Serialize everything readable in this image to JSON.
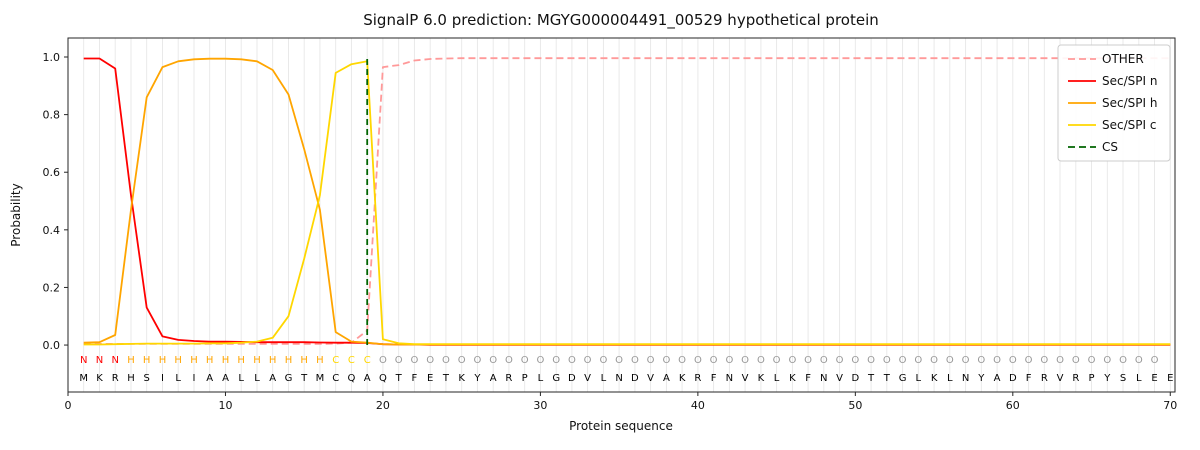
{
  "chart_data": {
    "type": "line",
    "title": "SignalP 6.0 prediction: MGYG000004491_00529 hypothetical protein",
    "xlabel": "Protein sequence",
    "ylabel": "Probability",
    "xlim": [
      0,
      70.3
    ],
    "ylim": [
      -0.163,
      1.066
    ],
    "xticks": [
      0,
      10,
      20,
      30,
      40,
      50,
      60,
      70
    ],
    "yticks": [
      {
        "v": 0.0,
        "label": "0.0"
      },
      {
        "v": 0.2,
        "label": "0.2"
      },
      {
        "v": 0.4,
        "label": "0.4"
      },
      {
        "v": 0.6,
        "label": "0.6"
      },
      {
        "v": 0.8,
        "label": "0.8"
      },
      {
        "v": 1.0,
        "label": "1.0"
      }
    ],
    "grid": "vertical-per-residue",
    "grid_color": "#e7e7e7",
    "legend_position": "upper right",
    "series": [
      {
        "name": "OTHER",
        "color": "#ff9999",
        "style": "dashed",
        "values": [
          0.004,
          0.004,
          0.004,
          0.004,
          0.004,
          0.004,
          0.004,
          0.004,
          0.004,
          0.004,
          0.004,
          0.004,
          0.004,
          0.004,
          0.004,
          0.004,
          0.005,
          0.008,
          0.05,
          0.965,
          0.972,
          0.988,
          0.993,
          0.995,
          0.996,
          0.996,
          0.996,
          0.996,
          0.996,
          0.996,
          0.996,
          0.996,
          0.996,
          0.996,
          0.996,
          0.996,
          0.996,
          0.996,
          0.996,
          0.996,
          0.996,
          0.996,
          0.996,
          0.996,
          0.996,
          0.996,
          0.996,
          0.996,
          0.996,
          0.996,
          0.996,
          0.996,
          0.996,
          0.996,
          0.996,
          0.996,
          0.996,
          0.996,
          0.996,
          0.996,
          0.996,
          0.996,
          0.996,
          0.996,
          0.996,
          0.996,
          0.996,
          0.996,
          0.996,
          0.996
        ]
      },
      {
        "name": "Sec/SPI n",
        "color": "#ff0000",
        "style": "solid",
        "values": [
          0.995,
          0.995,
          0.96,
          0.52,
          0.13,
          0.03,
          0.018,
          0.014,
          0.012,
          0.012,
          0.011,
          0.01,
          0.01,
          0.01,
          0.01,
          0.009,
          0.008,
          0.008,
          0.007,
          0.003,
          0.002,
          0.002,
          0.001,
          0.001,
          0.001,
          0.001,
          0.001,
          0.001,
          0.001,
          0.001,
          0.001,
          0.001,
          0.001,
          0.001,
          0.001,
          0.001,
          0.001,
          0.001,
          0.001,
          0.001,
          0.001,
          0.001,
          0.001,
          0.001,
          0.001,
          0.001,
          0.001,
          0.001,
          0.001,
          0.001,
          0.001,
          0.001,
          0.001,
          0.001,
          0.001,
          0.001,
          0.001,
          0.001,
          0.001,
          0.001,
          0.001,
          0.001,
          0.001,
          0.001,
          0.001,
          0.001,
          0.001,
          0.001,
          0.001,
          0.001
        ]
      },
      {
        "name": "Sec/SPI h",
        "color": "#ffa500",
        "style": "solid",
        "values": [
          0.008,
          0.01,
          0.035,
          0.47,
          0.86,
          0.965,
          0.985,
          0.992,
          0.994,
          0.994,
          0.992,
          0.985,
          0.955,
          0.87,
          0.68,
          0.47,
          0.045,
          0.012,
          0.008,
          0.003,
          0.002,
          0.002,
          0.002,
          0.002,
          0.002,
          0.002,
          0.002,
          0.002,
          0.002,
          0.002,
          0.002,
          0.002,
          0.002,
          0.002,
          0.002,
          0.002,
          0.002,
          0.002,
          0.002,
          0.002,
          0.002,
          0.002,
          0.002,
          0.002,
          0.002,
          0.002,
          0.002,
          0.002,
          0.002,
          0.002,
          0.002,
          0.002,
          0.002,
          0.002,
          0.002,
          0.002,
          0.002,
          0.002,
          0.002,
          0.002,
          0.002,
          0.002,
          0.002,
          0.002,
          0.002,
          0.002,
          0.002,
          0.002,
          0.002,
          0.002
        ]
      },
      {
        "name": "Sec/SPI c",
        "color": "#ffd700",
        "style": "solid",
        "values": [
          0.002,
          0.002,
          0.003,
          0.004,
          0.005,
          0.005,
          0.005,
          0.005,
          0.006,
          0.006,
          0.008,
          0.012,
          0.025,
          0.1,
          0.3,
          0.52,
          0.945,
          0.975,
          0.985,
          0.02,
          0.006,
          0.003,
          0.003,
          0.003,
          0.003,
          0.003,
          0.003,
          0.003,
          0.003,
          0.003,
          0.003,
          0.003,
          0.003,
          0.003,
          0.003,
          0.003,
          0.003,
          0.003,
          0.003,
          0.003,
          0.003,
          0.003,
          0.003,
          0.003,
          0.003,
          0.003,
          0.003,
          0.003,
          0.003,
          0.003,
          0.003,
          0.003,
          0.003,
          0.003,
          0.003,
          0.003,
          0.003,
          0.003,
          0.003,
          0.003,
          0.003,
          0.003,
          0.003,
          0.003,
          0.003,
          0.003,
          0.003,
          0.003,
          0.003,
          0.003
        ]
      }
    ],
    "cs_marker": {
      "name": "CS",
      "x": 19,
      "color": "#006400",
      "style": "dashed"
    },
    "sequence": "MKRHSILIAALLAGTMCQAQTFETKYARPLGDVLNDVAKRFNVKLKFNVDTTGLKLNYADFRVRPYSLEE",
    "region_labels": "NNNHHHHHHHHHHHHHCCCOOOOOOOOOOOOOOOOOOOOOOOOOOOOOOOOOOOOOOOOOOOOOOOOOO",
    "label_colors": {
      "N": "#ff0000",
      "H": "#ffa500",
      "C": "#ffd700",
      "O": "#999999"
    },
    "sequence_color": "#000000"
  }
}
